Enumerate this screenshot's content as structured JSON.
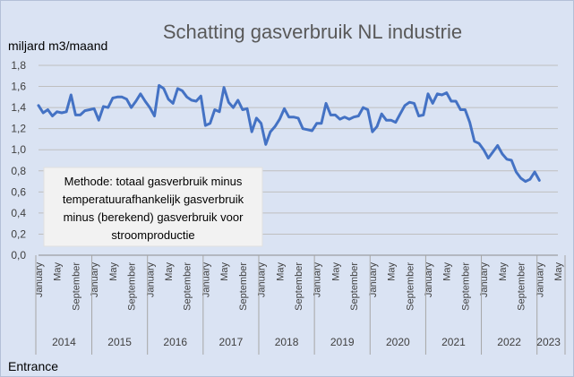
{
  "chart_data": {
    "type": "line",
    "title": "Schatting gasverbruik NL industrie",
    "ylabel": "miljard m3/maand",
    "ylim": [
      0,
      1.8
    ],
    "yticks": [
      "0,0",
      "0,2",
      "0,4",
      "0,6",
      "0,8",
      "1,0",
      "1,2",
      "1,4",
      "1,6",
      "1,8"
    ],
    "grid": true,
    "month_ticks": [
      "January",
      "May",
      "September"
    ],
    "years": [
      "2014",
      "2015",
      "2016",
      "2017",
      "2018",
      "2019",
      "2020",
      "2021",
      "2022",
      "2023"
    ],
    "x_start": "2014-01",
    "series": [
      {
        "values": [
          1.42,
          1.35,
          1.38,
          1.32,
          1.36,
          1.35,
          1.36,
          1.52,
          1.33,
          1.33,
          1.37,
          1.38,
          1.39,
          1.28,
          1.41,
          1.4,
          1.49,
          1.5,
          1.5,
          1.48,
          1.4,
          1.46,
          1.53,
          1.46,
          1.4,
          1.32,
          1.61,
          1.58,
          1.48,
          1.44,
          1.58,
          1.56,
          1.5,
          1.47,
          1.46,
          1.51,
          1.23,
          1.25,
          1.38,
          1.36,
          1.59,
          1.45,
          1.4,
          1.47,
          1.38,
          1.39,
          1.17,
          1.3,
          1.25,
          1.05,
          1.17,
          1.22,
          1.29,
          1.39,
          1.31,
          1.31,
          1.3,
          1.2,
          1.19,
          1.18,
          1.25,
          1.25,
          1.44,
          1.33,
          1.33,
          1.29,
          1.31,
          1.29,
          1.31,
          1.32,
          1.4,
          1.38,
          1.17,
          1.22,
          1.34,
          1.28,
          1.28,
          1.26,
          1.34,
          1.42,
          1.45,
          1.44,
          1.32,
          1.33,
          1.53,
          1.44,
          1.53,
          1.52,
          1.54,
          1.46,
          1.46,
          1.38,
          1.38,
          1.26,
          1.08,
          1.06,
          1.0,
          0.92,
          0.98,
          1.04,
          0.96,
          0.91,
          0.9,
          0.79,
          0.73,
          0.7,
          0.72,
          0.79,
          0.71
        ]
      }
    ],
    "line_color": "#4472c4",
    "annotation": [
      "Methode: totaal gasverbruik minus",
      "temperatuurafhankelijk gasverbruik",
      "minus (berekend) gasverbruik voor",
      "stroomproductie"
    ]
  },
  "footer": {
    "source": "Entrance"
  }
}
